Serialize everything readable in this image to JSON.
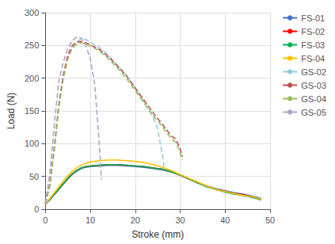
{
  "chart_data": {
    "type": "line",
    "xlabel": "Stroke (mm)",
    "ylabel": "Load (N)",
    "xlim": [
      0,
      50
    ],
    "ylim": [
      0,
      300
    ],
    "xticks": [
      0,
      10,
      20,
      30,
      40,
      50
    ],
    "yticks": [
      0,
      50,
      100,
      150,
      200,
      250,
      300
    ],
    "grid": true,
    "legend": "upper right",
    "series": [
      {
        "name": "FS-01",
        "color": "#4472C4",
        "line_style": "solid",
        "x": [
          0,
          1,
          2,
          3,
          4,
          5,
          6,
          7,
          8,
          9,
          10,
          12,
          14,
          16,
          18,
          20,
          22,
          24,
          26,
          28,
          30,
          32,
          34,
          36,
          38,
          40,
          42,
          44,
          46,
          47,
          48
        ],
        "values": [
          8,
          14,
          22,
          30,
          38,
          46,
          53,
          58,
          62,
          64,
          65,
          66,
          67,
          67,
          66,
          65,
          64,
          62,
          60,
          57,
          52,
          46,
          40,
          35,
          31,
          28,
          25,
          23,
          20,
          18,
          16
        ]
      },
      {
        "name": "FS-02",
        "color": "#FF0000",
        "line_style": "solid",
        "x": [
          0,
          1,
          2,
          3,
          4,
          5,
          6,
          7,
          8,
          9,
          10,
          12,
          14,
          16,
          18,
          20,
          22,
          24,
          26,
          28,
          30,
          32,
          34,
          36,
          38,
          40,
          42,
          44,
          46,
          47,
          48
        ],
        "values": [
          8,
          15,
          23,
          31,
          39,
          47,
          54,
          59,
          63,
          65,
          66,
          67,
          68,
          68,
          67,
          66,
          65,
          63,
          61,
          57,
          52,
          46,
          40,
          35,
          30,
          27,
          24,
          22,
          19,
          17,
          15
        ]
      },
      {
        "name": "FS-03",
        "color": "#00B050",
        "line_style": "solid",
        "x": [
          0,
          1,
          2,
          3,
          4,
          5,
          6,
          7,
          8,
          9,
          10,
          12,
          14,
          16,
          18,
          20,
          22,
          24,
          26,
          28,
          30,
          32,
          34,
          36,
          38,
          40,
          42,
          44,
          46,
          47,
          48
        ],
        "values": [
          8,
          15,
          23,
          31,
          39,
          47,
          54,
          59,
          63,
          65,
          66,
          67,
          68,
          68,
          67,
          66,
          65,
          63,
          61,
          57,
          52,
          46,
          40,
          34,
          30,
          26,
          23,
          21,
          18,
          16,
          14
        ]
      },
      {
        "name": "FS-04",
        "color": "#FFC000",
        "line_style": "solid",
        "x": [
          0,
          1,
          2,
          3,
          4,
          5,
          6,
          7,
          8,
          9,
          10,
          12,
          14,
          16,
          18,
          20,
          22,
          24,
          26,
          28,
          30,
          32,
          34,
          36,
          38,
          40,
          42,
          44,
          46,
          47,
          48
        ],
        "values": [
          8,
          16,
          25,
          34,
          43,
          51,
          58,
          63,
          67,
          70,
          72,
          74,
          75,
          75,
          74,
          73,
          71,
          68,
          64,
          59,
          53,
          47,
          41,
          35,
          30,
          27,
          24,
          21,
          19,
          17,
          15
        ]
      },
      {
        "name": "GS-02",
        "color": "#92CDDC",
        "line_style": "dashed",
        "x": [
          0,
          1,
          2,
          3,
          4,
          5,
          6,
          7,
          8,
          9,
          10,
          12,
          14,
          16,
          18,
          20,
          22,
          24,
          25,
          25.5,
          26,
          26.5
        ],
        "values": [
          8,
          35,
          90,
          155,
          200,
          230,
          248,
          256,
          260,
          259,
          255,
          247,
          235,
          220,
          205,
          185,
          163,
          140,
          123,
          103,
          85,
          60
        ]
      },
      {
        "name": "GS-03",
        "color": "#C0504D",
        "line_style": "dashed",
        "x": [
          0,
          1,
          2,
          3,
          4,
          5,
          6,
          7,
          8,
          9,
          10,
          12,
          14,
          16,
          18,
          20,
          22,
          24,
          26,
          28,
          29,
          29.5,
          30,
          30.5
        ],
        "values": [
          8,
          38,
          95,
          160,
          205,
          235,
          250,
          255,
          256,
          254,
          251,
          244,
          233,
          219,
          204,
          185,
          166,
          147,
          130,
          112,
          107,
          100,
          92,
          80
        ]
      },
      {
        "name": "GS-04",
        "color": "#9BBB59",
        "line_style": "dashed",
        "x": [
          0,
          1,
          2,
          3,
          4,
          5,
          6,
          7,
          8,
          9,
          10,
          12,
          14,
          16,
          18,
          20,
          22,
          24,
          26,
          28,
          29,
          29.5,
          30,
          30.5
        ],
        "values": [
          8,
          36,
          92,
          155,
          200,
          230,
          246,
          252,
          254,
          252,
          249,
          242,
          230,
          216,
          200,
          181,
          162,
          143,
          126,
          108,
          102,
          95,
          87,
          75
        ]
      },
      {
        "name": "GS-05",
        "color": "#B2A2C7",
        "line_style": "dashed",
        "x": [
          0,
          1,
          2,
          3,
          4,
          5,
          6,
          7,
          8,
          9,
          10,
          11,
          12,
          12.5
        ],
        "values": [
          8,
          55,
          130,
          195,
          225,
          245,
          257,
          263,
          261,
          250,
          230,
          190,
          100,
          45
        ]
      }
    ]
  }
}
